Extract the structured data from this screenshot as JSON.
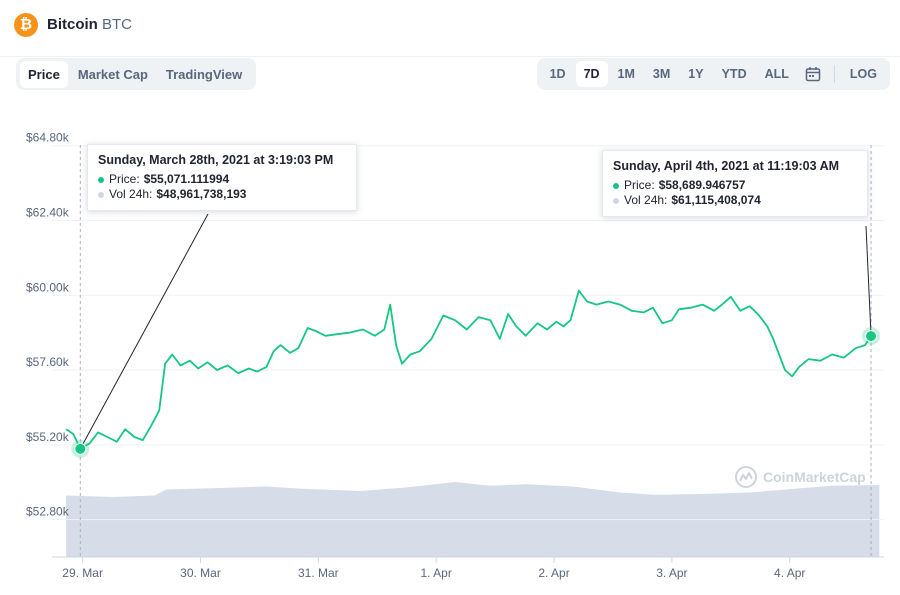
{
  "header": {
    "coin_icon_glyph": "₿",
    "coin_name": "Bitcoin",
    "coin_symbol": "BTC",
    "brand_color": "#f7931a"
  },
  "tabs": [
    {
      "label": "Price",
      "active": true
    },
    {
      "label": "Market Cap",
      "active": false
    },
    {
      "label": "TradingView",
      "active": false
    }
  ],
  "ranges": {
    "items": [
      {
        "label": "1D",
        "active": false
      },
      {
        "label": "7D",
        "active": true
      },
      {
        "label": "1M",
        "active": false
      },
      {
        "label": "3M",
        "active": false
      },
      {
        "label": "1Y",
        "active": false
      },
      {
        "label": "YTD",
        "active": false
      },
      {
        "label": "ALL",
        "active": false
      }
    ],
    "calendar_icon": "calendar-icon",
    "log_label": "LOG"
  },
  "tooltips": [
    {
      "date": "Sunday, March 28th, 2021 at 3:19:03 PM",
      "price_label": "Price:",
      "price_value": "$55,071.111994",
      "vol_label": "Vol 24h:",
      "vol_value": "$48,961,738,193"
    },
    {
      "date": "Sunday, April 4th, 2021 at 11:19:03 AM",
      "price_label": "Price:",
      "price_value": "$58,689.946757",
      "vol_label": "Vol 24h:",
      "vol_value": "$61,115,408,074"
    }
  ],
  "watermark": "CoinMarketCap",
  "chart_data": {
    "type": "line",
    "title": "",
    "xlabel": "",
    "ylabel": "",
    "price_color": "#16c784",
    "volume_color": "#cfd6e4",
    "grid": true,
    "ylim": [
      51600,
      65400
    ],
    "yticks": [
      {
        "value": 52800,
        "label": "$52.80k"
      },
      {
        "value": 55200,
        "label": "$55.20k"
      },
      {
        "value": 57600,
        "label": "$57.60k"
      },
      {
        "value": 60000,
        "label": "$60.00k"
      },
      {
        "value": 62400,
        "label": "$62.40k"
      },
      {
        "value": 64800,
        "label": "$64.80k"
      }
    ],
    "xlim": [
      -0.12,
      6.94
    ],
    "xticks": [
      {
        "value": 0.14,
        "label": "29. Mar"
      },
      {
        "value": 1.14,
        "label": "30. Mar"
      },
      {
        "value": 2.14,
        "label": "31. Mar"
      },
      {
        "value": 3.14,
        "label": "1. Apr"
      },
      {
        "value": 4.14,
        "label": "2. Apr"
      },
      {
        "value": 5.14,
        "label": "3. Apr"
      },
      {
        "value": 6.14,
        "label": "4. Apr"
      }
    ],
    "price": [
      [
        0.0,
        55700
      ],
      [
        0.06,
        55550
      ],
      [
        0.12,
        55071
      ],
      [
        0.2,
        55250
      ],
      [
        0.27,
        55600
      ],
      [
        0.35,
        55450
      ],
      [
        0.43,
        55300
      ],
      [
        0.5,
        55700
      ],
      [
        0.58,
        55450
      ],
      [
        0.65,
        55350
      ],
      [
        0.72,
        55800
      ],
      [
        0.79,
        56300
      ],
      [
        0.84,
        57800
      ],
      [
        0.9,
        58100
      ],
      [
        0.97,
        57750
      ],
      [
        1.05,
        57900
      ],
      [
        1.12,
        57650
      ],
      [
        1.2,
        57850
      ],
      [
        1.28,
        57600
      ],
      [
        1.37,
        57750
      ],
      [
        1.46,
        57500
      ],
      [
        1.55,
        57650
      ],
      [
        1.62,
        57550
      ],
      [
        1.7,
        57700
      ],
      [
        1.76,
        58200
      ],
      [
        1.82,
        58400
      ],
      [
        1.9,
        58150
      ],
      [
        1.97,
        58300
      ],
      [
        2.05,
        58950
      ],
      [
        2.12,
        58850
      ],
      [
        2.2,
        58700
      ],
      [
        2.3,
        58750
      ],
      [
        2.4,
        58800
      ],
      [
        2.52,
        58900
      ],
      [
        2.62,
        58700
      ],
      [
        2.7,
        58900
      ],
      [
        2.75,
        59700
      ],
      [
        2.8,
        58400
      ],
      [
        2.85,
        57800
      ],
      [
        2.92,
        58100
      ],
      [
        3.0,
        58200
      ],
      [
        3.1,
        58600
      ],
      [
        3.2,
        59350
      ],
      [
        3.3,
        59200
      ],
      [
        3.4,
        58900
      ],
      [
        3.5,
        59300
      ],
      [
        3.6,
        59200
      ],
      [
        3.68,
        58600
      ],
      [
        3.75,
        59400
      ],
      [
        3.82,
        59000
      ],
      [
        3.9,
        58700
      ],
      [
        4.0,
        59100
      ],
      [
        4.08,
        58900
      ],
      [
        4.16,
        59150
      ],
      [
        4.22,
        59000
      ],
      [
        4.28,
        59200
      ],
      [
        4.35,
        60150
      ],
      [
        4.42,
        59800
      ],
      [
        4.5,
        59700
      ],
      [
        4.6,
        59800
      ],
      [
        4.7,
        59700
      ],
      [
        4.8,
        59500
      ],
      [
        4.9,
        59450
      ],
      [
        4.98,
        59600
      ],
      [
        5.06,
        59100
      ],
      [
        5.14,
        59200
      ],
      [
        5.2,
        59550
      ],
      [
        5.3,
        59600
      ],
      [
        5.4,
        59700
      ],
      [
        5.5,
        59500
      ],
      [
        5.58,
        59750
      ],
      [
        5.64,
        59950
      ],
      [
        5.72,
        59500
      ],
      [
        5.8,
        59650
      ],
      [
        5.88,
        59350
      ],
      [
        5.95,
        59000
      ],
      [
        6.0,
        58600
      ],
      [
        6.05,
        58100
      ],
      [
        6.1,
        57600
      ],
      [
        6.16,
        57400
      ],
      [
        6.22,
        57700
      ],
      [
        6.3,
        57950
      ],
      [
        6.4,
        57900
      ],
      [
        6.5,
        58100
      ],
      [
        6.6,
        58000
      ],
      [
        6.7,
        58300
      ],
      [
        6.78,
        58400
      ],
      [
        6.83,
        58690
      ]
    ],
    "volume_relative": [
      [
        0.0,
        0.82
      ],
      [
        0.4,
        0.8
      ],
      [
        0.75,
        0.82
      ],
      [
        0.85,
        0.9
      ],
      [
        1.3,
        0.92
      ],
      [
        1.7,
        0.94
      ],
      [
        2.0,
        0.91
      ],
      [
        2.5,
        0.88
      ],
      [
        2.9,
        0.93
      ],
      [
        3.3,
        1.0
      ],
      [
        3.6,
        0.95
      ],
      [
        3.9,
        0.97
      ],
      [
        4.3,
        0.94
      ],
      [
        4.7,
        0.86
      ],
      [
        5.0,
        0.83
      ],
      [
        5.4,
        0.84
      ],
      [
        5.8,
        0.86
      ],
      [
        6.1,
        0.9
      ],
      [
        6.5,
        0.95
      ],
      [
        6.9,
        0.96
      ]
    ],
    "highlighted_points": [
      {
        "x": 0.12,
        "y": 55071,
        "tooltip": 0
      },
      {
        "x": 6.83,
        "y": 58690,
        "tooltip": 1
      }
    ]
  }
}
